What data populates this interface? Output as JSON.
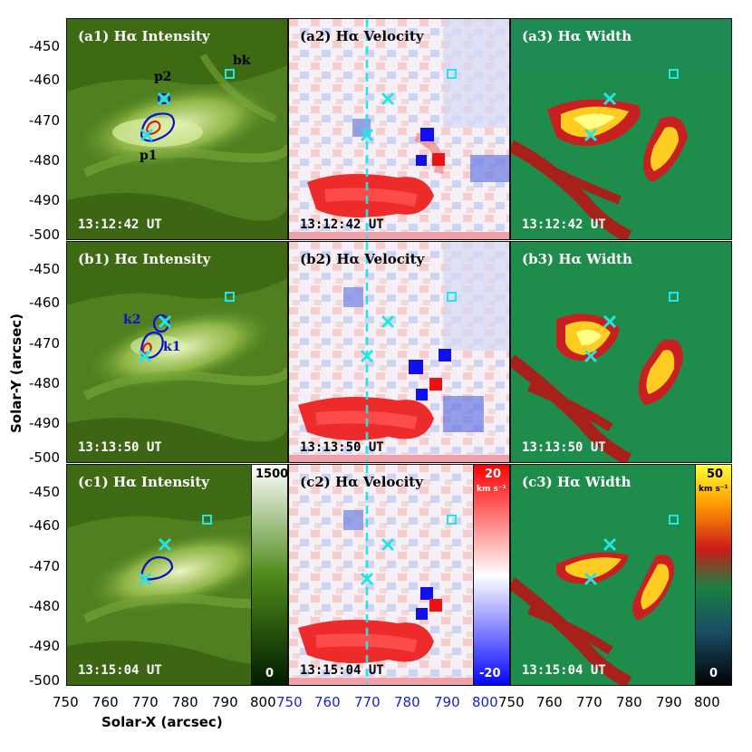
{
  "ylabel": "Solar-Y (arcsec)",
  "xlabel": "Solar-X (arcsec)",
  "y_ticks": [
    "-450",
    "-460",
    "-470",
    "-480",
    "-490",
    "-500"
  ],
  "x_ticks_col1": [
    "750",
    "760",
    "770",
    "780",
    "790",
    "800"
  ],
  "x_ticks_col2": [
    "750",
    "760",
    "770",
    "780",
    "790",
    "800"
  ],
  "x_ticks_col3": [
    "750",
    "760",
    "770",
    "780",
    "790",
    "800"
  ],
  "x_tick_color_col2": "#1a1adf",
  "panels": {
    "a1": {
      "title": "(a1) Hα Intensity",
      "time": "13:12:42 UT"
    },
    "a2": {
      "title": "(a2) Hα Velocity",
      "time": "13:12:42 UT"
    },
    "a3": {
      "title": "(a3) Hα Width",
      "time": "13:12:42 UT"
    },
    "b1": {
      "title": "(b1) Hα Intensity",
      "time": "13:13:50 UT"
    },
    "b2": {
      "title": "(b2) Hα Velocity",
      "time": "13:13:50 UT"
    },
    "b3": {
      "title": "(b3) Hα Width",
      "time": "13:13:50 UT"
    },
    "c1": {
      "title": "(c1) Hα Intensity",
      "time": "13:15:04 UT"
    },
    "c2": {
      "title": "(c2) Hα Velocity",
      "time": "13:15:04 UT"
    },
    "c3": {
      "title": "(c3) Hα Width",
      "time": "13:15:04 UT"
    }
  },
  "labels": {
    "p1": "p1",
    "p2": "p2",
    "bk": "bk",
    "k1": "k1",
    "k2": "k2"
  },
  "colorbars": {
    "intensity": {
      "max": "1500",
      "min": "0"
    },
    "velocity": {
      "max": "20",
      "min": "-20",
      "unit": "km s⁻¹"
    },
    "width": {
      "max": "50",
      "min": "0",
      "unit": "km s⁻¹"
    }
  },
  "colors": {
    "marker": "#22e6e6",
    "contour_blue": "#1010cc",
    "contour_red": "#dd1111"
  }
}
